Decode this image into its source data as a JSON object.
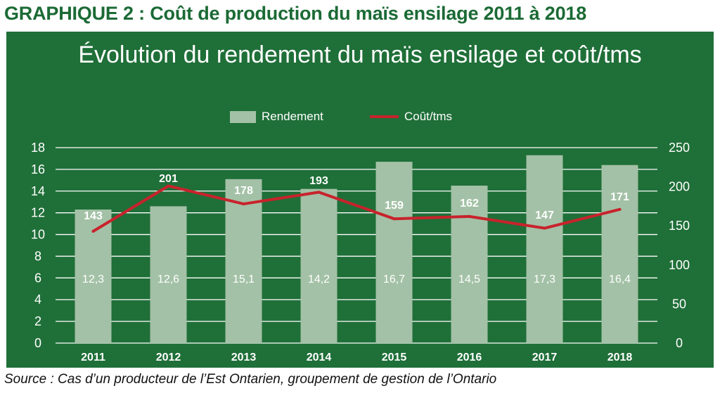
{
  "header": {
    "title": "GRAPHIQUE 2 : Coût de production du maïs ensilage 2011 à 2018"
  },
  "source": "Source : Cas d’un producteur de l’Est Ontarien, groupement de gestion de l’Ontario",
  "colors": {
    "panel": "#1f6f38",
    "bar": "#a3c1a6",
    "line": "#c8232c",
    "text": "#ffffff",
    "title": "#1b6a35"
  },
  "chart_data": {
    "type": "bar",
    "title": "Évolution du rendement du maïs ensilage et coût/tms",
    "categories": [
      "2011",
      "2012",
      "2013",
      "2014",
      "2015",
      "2016",
      "2017",
      "2018"
    ],
    "series": [
      {
        "name": "Rendement",
        "type": "bar",
        "axis": "left",
        "values": [
          12.3,
          12.6,
          15.1,
          14.2,
          16.7,
          14.5,
          17.3,
          16.4
        ],
        "labels": [
          "12,3",
          "12,6",
          "15,1",
          "14,2",
          "16,7",
          "14,5",
          "17,3",
          "16,4"
        ]
      },
      {
        "name": "Coût/tms",
        "type": "line",
        "axis": "right",
        "values": [
          143,
          201,
          178,
          193,
          159,
          162,
          147,
          171
        ],
        "labels": [
          "143",
          "201",
          "178",
          "193",
          "159",
          "162",
          "147",
          "171"
        ]
      }
    ],
    "y_left": {
      "min": 0,
      "max": 18,
      "ticks": [
        "0",
        "2",
        "4",
        "6",
        "8",
        "10",
        "12",
        "14",
        "16",
        "18"
      ]
    },
    "y_right": {
      "min": 0,
      "max": 250,
      "ticks": [
        "0",
        "50",
        "100",
        "150",
        "200",
        "250"
      ]
    },
    "grid": true,
    "legend": "top-center"
  }
}
